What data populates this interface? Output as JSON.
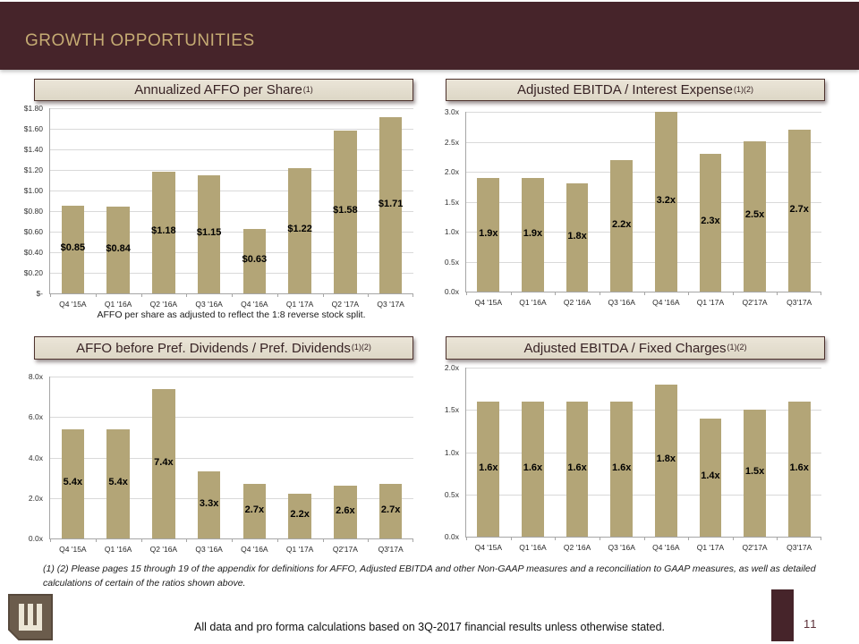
{
  "slide": {
    "header_title": "GROWTH OPPORTUNITIES",
    "footnote": "(1) (2) Please pages 15 through 19 of the appendix for definitions for AFFO, Adjusted EBITDA and other Non-GAAP measures and a reconciliation to GAAP measures, as well as detailed calculations of certain of the ratios shown above.",
    "footer_statement": "All data and pro forma calculations based on 3Q-2017 financial results unless otherwise stated.",
    "page_number": "11",
    "logo": "w-monogram"
  },
  "colors": {
    "header_bg": "#46242a",
    "header_text": "#c5ab73",
    "bar_fill": "#b3a577",
    "title_box_bg": "#e5dfd2",
    "title_box_border": "#4e332e",
    "accent_maroon": "#46242a"
  },
  "chart_data": [
    {
      "id": "affo_per_share",
      "type": "bar",
      "title": "Annualized AFFO per Share",
      "title_sup": "(1)",
      "categories": [
        "Q4 '15A",
        "Q1 '16A",
        "Q2 '16A",
        "Q3 '16A",
        "Q4 '16A",
        "Q1 '17A",
        "Q2 '17A",
        "Q3 '17A"
      ],
      "values": [
        0.85,
        0.84,
        1.18,
        1.15,
        0.63,
        1.22,
        1.58,
        1.71
      ],
      "labels": [
        "$0.85",
        "$0.84",
        "$1.18",
        "$1.15",
        "$0.63",
        "$1.22",
        "$1.58",
        "$1.71"
      ],
      "ymax": 1.8,
      "ylim": [
        0,
        1.8
      ],
      "yticks": [
        "$1.80",
        "$1.60",
        "$1.40",
        "$1.20",
        "$1.00",
        "$0.80",
        "$0.60",
        "$0.40",
        "$0.20",
        "$-"
      ],
      "grid": true,
      "legend": "none",
      "note": "AFFO per share as adjusted to reflect the 1:8 reverse stock split."
    },
    {
      "id": "ebitda_interest",
      "type": "bar",
      "title": "Adjusted EBITDA / Interest Expense",
      "title_sup": "(1)(2)",
      "categories": [
        "Q4 '15A",
        "Q1 '16A",
        "Q2 '16A",
        "Q3 '16A",
        "Q4 '16A",
        "Q1 '17A",
        "Q2'17A",
        "Q3'17A"
      ],
      "values": [
        1.9,
        1.9,
        1.8,
        2.2,
        3.2,
        2.3,
        2.5,
        2.7
      ],
      "labels": [
        "1.9x",
        "1.9x",
        "1.8x",
        "2.2x",
        "3.2x",
        "2.3x",
        "2.5x",
        "2.7x"
      ],
      "ymax": 3.0,
      "ylim": [
        0,
        3.0
      ],
      "yticks": [
        "3.0x",
        "2.5x",
        "2.0x",
        "1.5x",
        "1.0x",
        "0.5x",
        "0.0x"
      ],
      "grid": true,
      "legend": "none",
      "note": ""
    },
    {
      "id": "affo_pref_dividends",
      "type": "bar",
      "title": "AFFO before Pref. Dividends / Pref. Dividends",
      "title_sup": "(1)(2)",
      "categories": [
        "Q4 '15A",
        "Q1 '16A",
        "Q2 '16A",
        "Q3 '16A",
        "Q4 '16A",
        "Q1 '17A",
        "Q2'17A",
        "Q3'17A"
      ],
      "values": [
        5.4,
        5.4,
        7.4,
        3.3,
        2.7,
        2.2,
        2.6,
        2.7
      ],
      "labels": [
        "5.4x",
        "5.4x",
        "7.4x",
        "3.3x",
        "2.7x",
        "2.2x",
        "2.6x",
        "2.7x"
      ],
      "ymax": 8.0,
      "ylim": [
        0,
        8.0
      ],
      "yticks": [
        "8.0x",
        "6.0x",
        "4.0x",
        "2.0x",
        "0.0x"
      ],
      "grid": true,
      "legend": "none",
      "note": ""
    },
    {
      "id": "ebitda_fixed_charges",
      "type": "bar",
      "title": "Adjusted EBITDA / Fixed Charges",
      "title_sup": "(1)(2)",
      "categories": [
        "Q4 '15A",
        "Q1 '16A",
        "Q2 '16A",
        "Q3 '16A",
        "Q4 '16A",
        "Q1 '17A",
        "Q2'17A",
        "Q3'17A"
      ],
      "values": [
        1.6,
        1.6,
        1.6,
        1.6,
        1.8,
        1.4,
        1.5,
        1.6
      ],
      "labels": [
        "1.6x",
        "1.6x",
        "1.6x",
        "1.6x",
        "1.8x",
        "1.4x",
        "1.5x",
        "1.6x"
      ],
      "ymax": 2.0,
      "ylim": [
        0,
        2.0
      ],
      "yticks": [
        "2.0x",
        "1.5x",
        "1.0x",
        "0.5x",
        "0.0x"
      ],
      "grid": true,
      "legend": "none",
      "note": ""
    }
  ]
}
